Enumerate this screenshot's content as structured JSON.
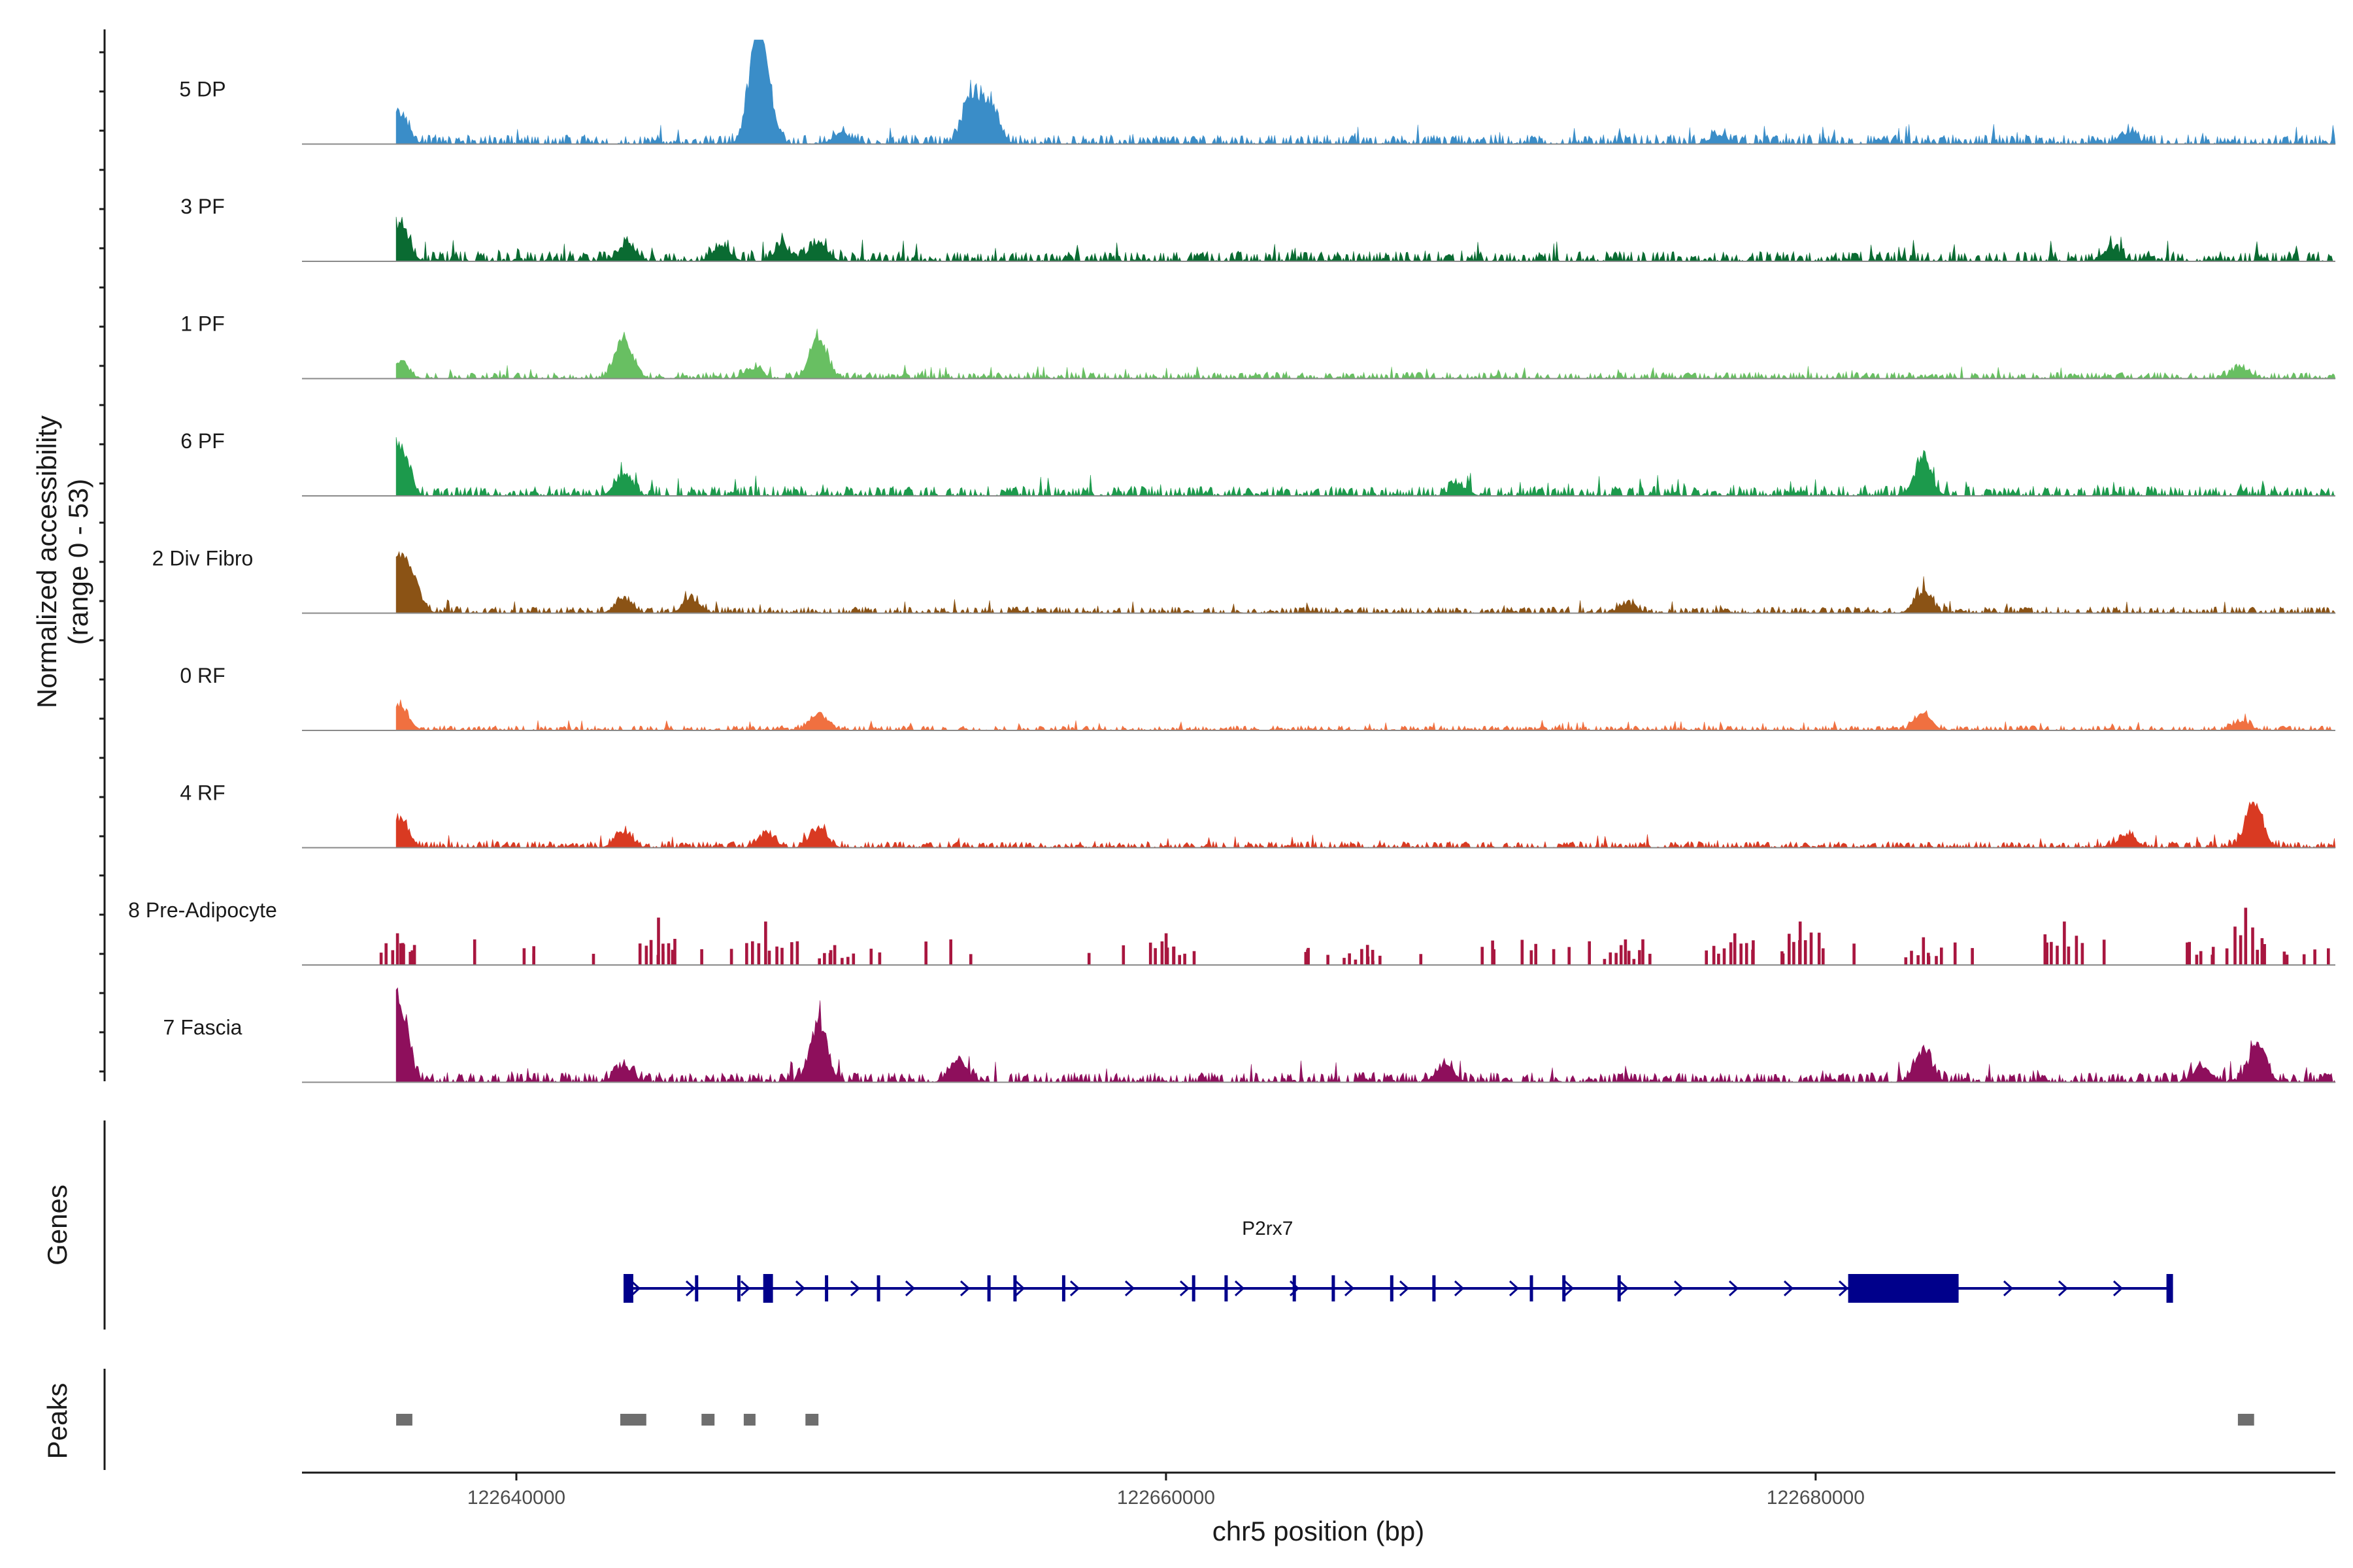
{
  "chart_data": {
    "type": "area",
    "title": "",
    "ylabel": "Normalized accessibility",
    "ylabel_range": "(range 0 - 53)",
    "xlabel": "chr5 position (bp)",
    "xlim": [
      122633400,
      122696000
    ],
    "ylim": [
      0,
      53
    ],
    "x_ticks": [
      {
        "value": 122640000,
        "label": "122640000"
      },
      {
        "value": 122660000,
        "label": "122660000"
      },
      {
        "value": 122680000,
        "label": "122680000"
      }
    ],
    "data_start": 122636300,
    "data_end": 122696000,
    "tracks": [
      {
        "name": "5 DP",
        "color": "#3a8dc8",
        "baseline": 6,
        "noise": 4,
        "peaks": [
          [
            122636400,
            16
          ],
          [
            122647400,
            53
          ],
          [
            122647700,
            20
          ],
          [
            122654000,
            28
          ],
          [
            122654600,
            22
          ],
          [
            122650000,
            6
          ],
          [
            122677000,
            5
          ],
          [
            122689600,
            6
          ]
        ]
      },
      {
        "name": "3 PF",
        "color": "#0a6b32",
        "baseline": 5,
        "noise": 5,
        "peaks": [
          [
            122636400,
            22
          ],
          [
            122643400,
            10
          ],
          [
            122646300,
            9
          ],
          [
            122649300,
            11
          ],
          [
            122648200,
            8
          ],
          [
            122689100,
            7
          ]
        ]
      },
      {
        "name": "1 PF",
        "color": "#68bf62",
        "baseline": 4,
        "noise": 4,
        "peaks": [
          [
            122636400,
            10
          ],
          [
            122643300,
            23
          ],
          [
            122647300,
            6
          ],
          [
            122649300,
            23
          ],
          [
            122693100,
            6
          ]
        ]
      },
      {
        "name": "6 PF",
        "color": "#1c9a4c",
        "baseline": 5,
        "noise": 5,
        "peaks": [
          [
            122636400,
            30
          ],
          [
            122643300,
            12
          ],
          [
            122683300,
            20
          ],
          [
            122669000,
            6
          ]
        ]
      },
      {
        "name": "2 Div Fibro",
        "color": "#8b5315",
        "baseline": 4,
        "noise": 4,
        "peaks": [
          [
            122636300,
            30
          ],
          [
            122636800,
            18
          ],
          [
            122643300,
            8
          ],
          [
            122645400,
            8
          ],
          [
            122683300,
            12
          ],
          [
            122674200,
            5
          ]
        ]
      },
      {
        "name": "0 RF",
        "color": "#f07040",
        "baseline": 4,
        "noise": 3,
        "peaks": [
          [
            122636400,
            15
          ],
          [
            122649300,
            10
          ],
          [
            122683300,
            9
          ],
          [
            122693100,
            5
          ]
        ]
      },
      {
        "name": "4 RF",
        "color": "#d93a22",
        "baseline": 4,
        "noise": 4,
        "peaks": [
          [
            122636400,
            16
          ],
          [
            122643300,
            9
          ],
          [
            122647700,
            8
          ],
          [
            122649300,
            11
          ],
          [
            122693500,
            26
          ],
          [
            122689600,
            7
          ]
        ]
      },
      {
        "name": "8 Pre-Adipocyte",
        "color": "#a8163f",
        "baseline": 0,
        "noise": 0,
        "sparse": true,
        "peaks": [
          [
            122636300,
            16
          ],
          [
            122644300,
            24
          ],
          [
            122647600,
            22
          ],
          [
            122649800,
            10
          ],
          [
            122660000,
            16
          ],
          [
            122677500,
            16
          ],
          [
            122679500,
            22
          ],
          [
            122683300,
            14
          ],
          [
            122687600,
            22
          ],
          [
            122693200,
            29
          ],
          [
            122666000,
            8
          ],
          [
            122674000,
            10
          ]
        ]
      },
      {
        "name": "7 Fascia",
        "color": "#8e0f5c",
        "baseline": 5,
        "noise": 5,
        "peaks": [
          [
            122636400,
            46
          ],
          [
            122649300,
            34
          ],
          [
            122643300,
            9
          ],
          [
            122653600,
            12
          ],
          [
            122668600,
            10
          ],
          [
            122683300,
            18
          ],
          [
            122693600,
            20
          ],
          [
            122691900,
            9
          ]
        ]
      }
    ],
    "genes_panel_label": "Genes",
    "gene": {
      "name": "P2rx7",
      "start": 122643300,
      "end": 122691000,
      "color": "#00008b",
      "exons": [
        {
          "start": 122643300,
          "end": 122643600,
          "thick": true
        },
        {
          "start": 122645500,
          "end": 122645600,
          "thick": false
        },
        {
          "start": 122646800,
          "end": 122646900,
          "thick": false
        },
        {
          "start": 122647600,
          "end": 122647900,
          "thick": true
        },
        {
          "start": 122649500,
          "end": 122649600,
          "thick": false
        },
        {
          "start": 122651100,
          "end": 122651200,
          "thick": false
        },
        {
          "start": 122654500,
          "end": 122654600,
          "thick": false
        },
        {
          "start": 122655300,
          "end": 122655400,
          "thick": false
        },
        {
          "start": 122656800,
          "end": 122656900,
          "thick": false
        },
        {
          "start": 122660800,
          "end": 122660900,
          "thick": false
        },
        {
          "start": 122661800,
          "end": 122661900,
          "thick": false
        },
        {
          "start": 122663900,
          "end": 122664000,
          "thick": false
        },
        {
          "start": 122665100,
          "end": 122665200,
          "thick": false
        },
        {
          "start": 122666900,
          "end": 122667000,
          "thick": false
        },
        {
          "start": 122668200,
          "end": 122668300,
          "thick": false
        },
        {
          "start": 122671200,
          "end": 122671300,
          "thick": false
        },
        {
          "start": 122672200,
          "end": 122672300,
          "thick": false
        },
        {
          "start": 122673900,
          "end": 122674000,
          "thick": false
        },
        {
          "start": 122681000,
          "end": 122684400,
          "thick": true
        },
        {
          "start": 122690800,
          "end": 122691000,
          "thick": true
        }
      ]
    },
    "peaks_panel_label": "Peaks",
    "peak_color": "#6e6e6e",
    "peak_regions": [
      [
        122636300,
        122636800
      ],
      [
        122643200,
        122644000
      ],
      [
        122645700,
        122646100
      ],
      [
        122647000,
        122647300
      ],
      [
        122648900,
        122649300
      ],
      [
        122693000,
        122693500
      ]
    ]
  }
}
